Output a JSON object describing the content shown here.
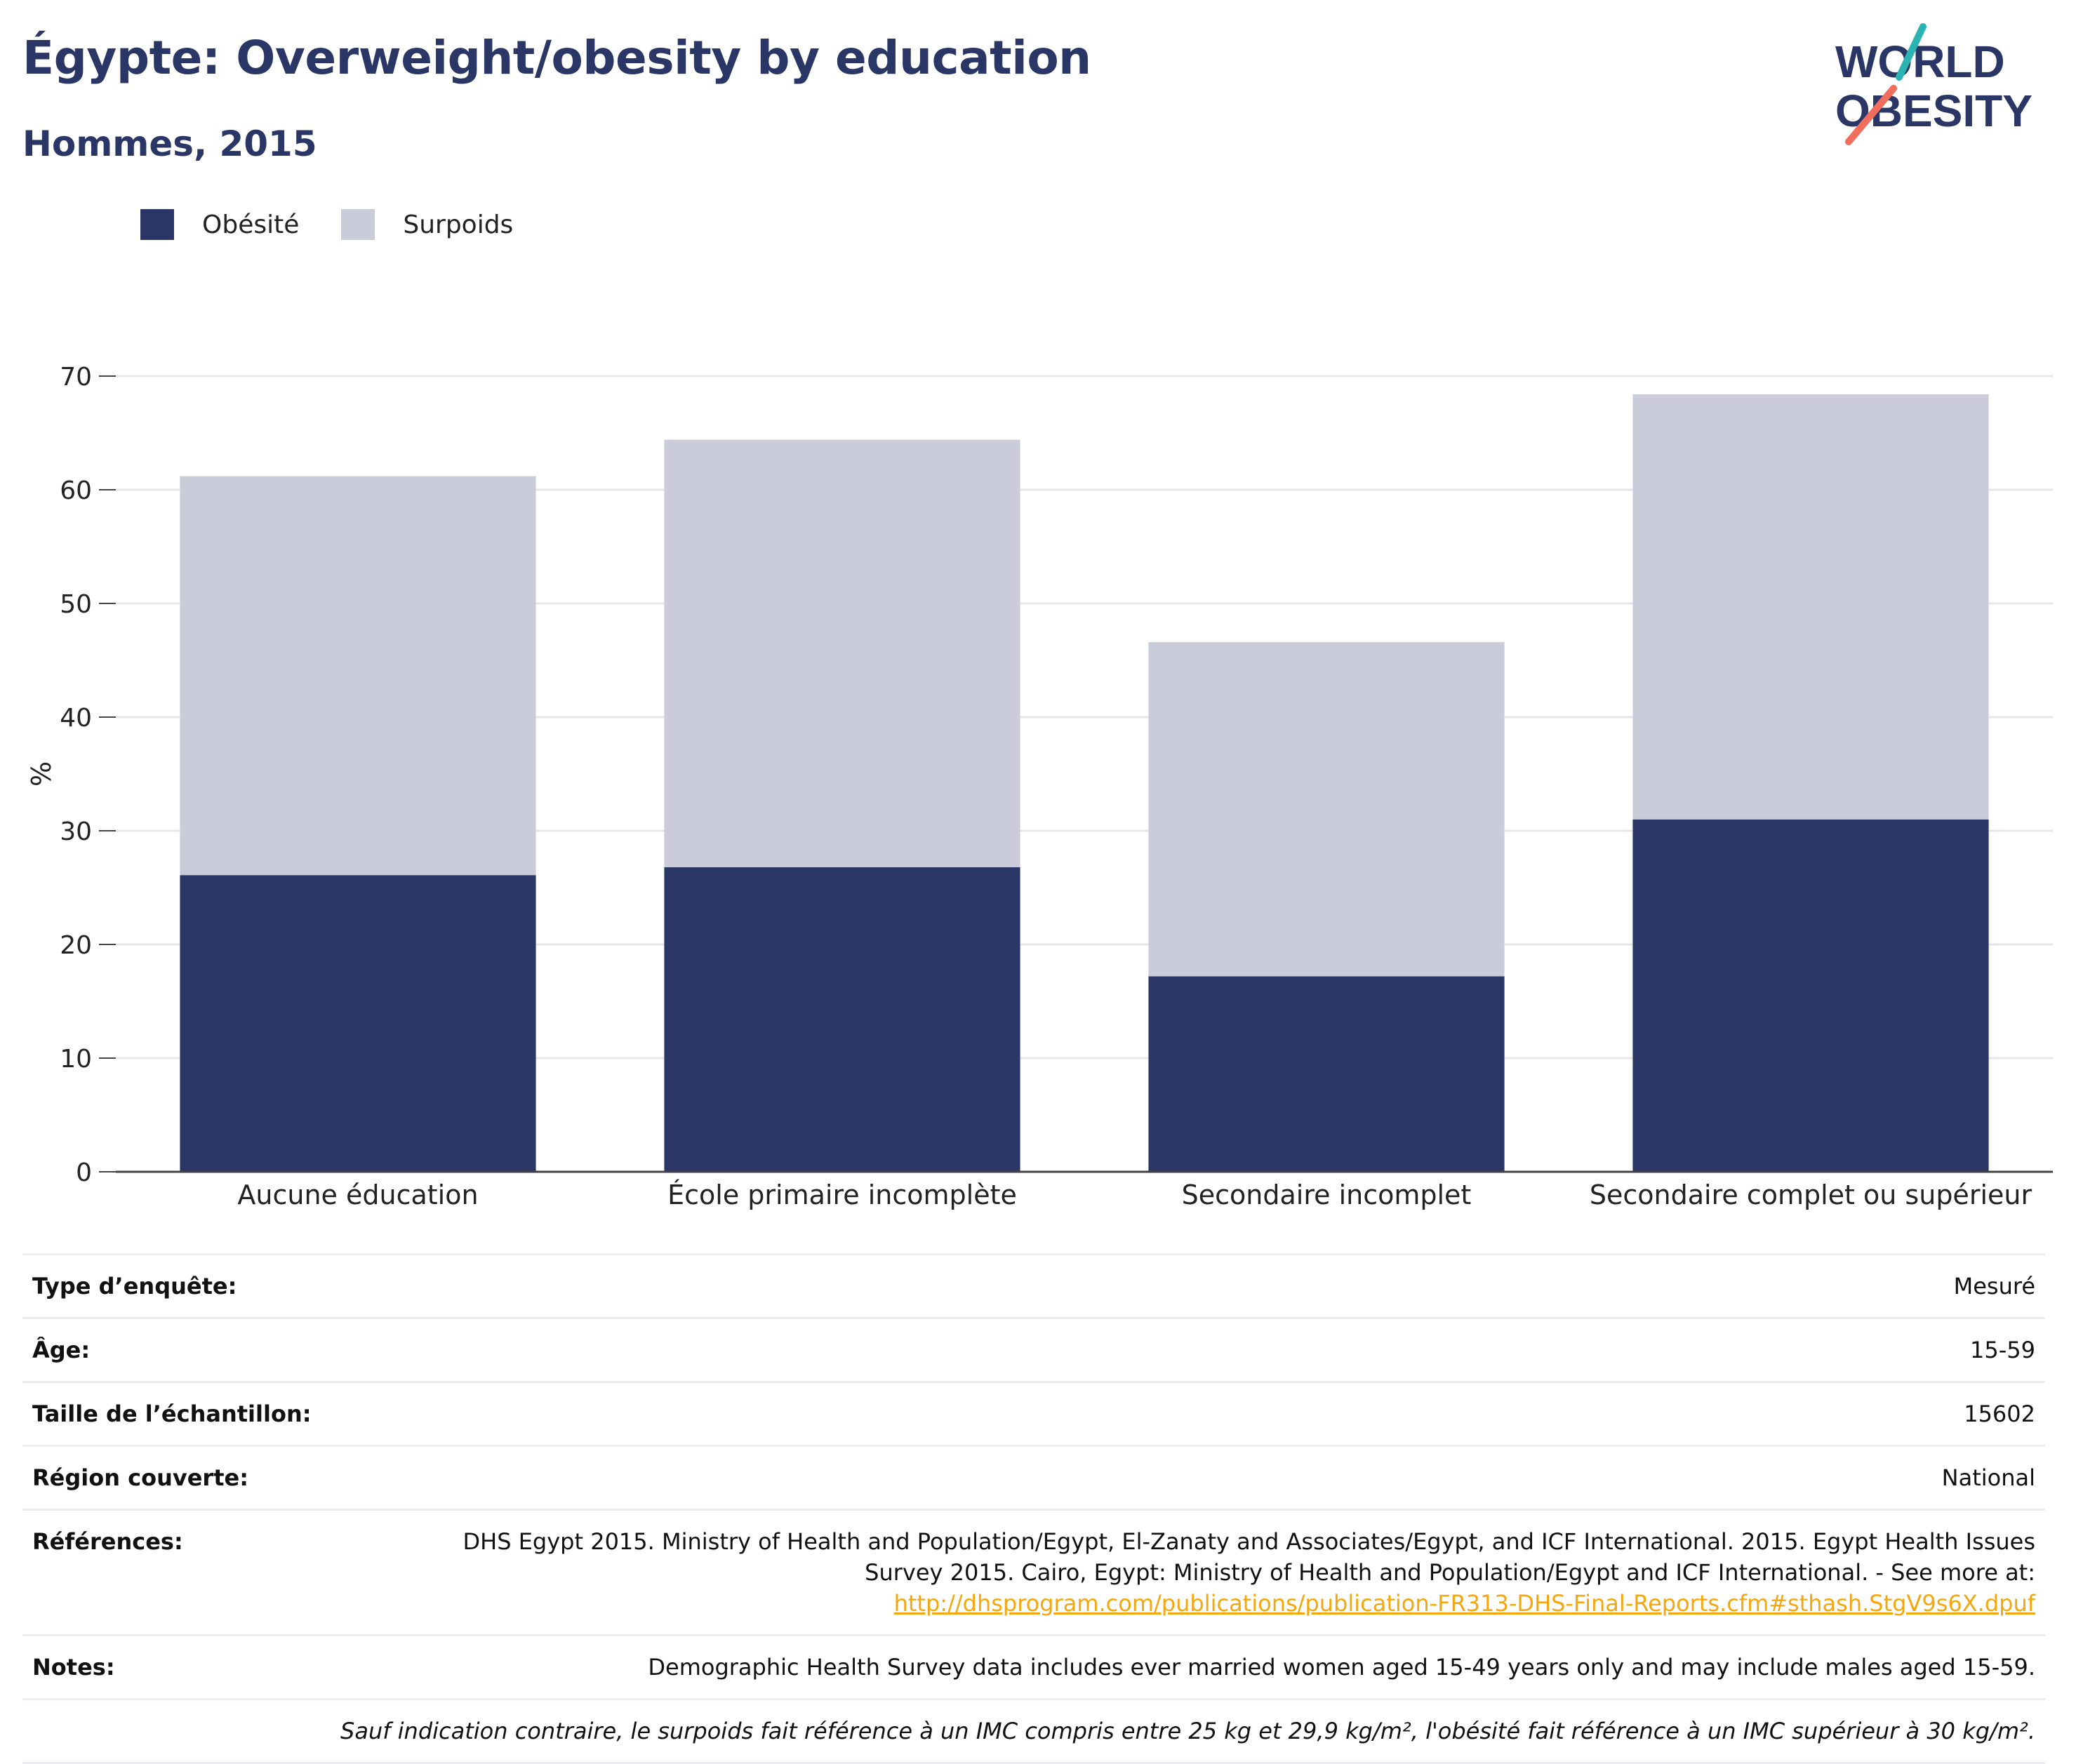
{
  "header": {
    "title": "Égypte: Overweight/obesity by education",
    "subtitle": "Hommes, 2015"
  },
  "logo": {
    "line1": "WORLD",
    "line2": "OBESITY"
  },
  "colors": {
    "obesity": "#2a3766",
    "overweight": "#cacdd9",
    "title": "#2a3766",
    "link": "#f4a70f",
    "logo_teal": "#2ab3b1",
    "logo_coral": "#f06e5b"
  },
  "chart_data": {
    "type": "bar",
    "stacked": true,
    "title": "Égypte: Overweight/obesity by education",
    "subtitle": "Hommes, 2015",
    "ylabel": "%",
    "xlabel": "",
    "ylim": [
      0,
      70
    ],
    "yticks": [
      "0",
      "10",
      "20",
      "30",
      "40",
      "50",
      "60",
      "70"
    ],
    "grid": true,
    "legend_position": "top-left",
    "categories": [
      "Aucune éducation",
      "École primaire incomplète",
      "Secondaire incomplet",
      "Secondaire complet ou supérieur"
    ],
    "series": [
      {
        "name": "Obésité",
        "values": [
          26.1,
          26.8,
          17.2,
          31.0
        ]
      },
      {
        "name": "Surpoids",
        "values": [
          35.1,
          37.6,
          29.4,
          37.4
        ]
      }
    ]
  },
  "info": {
    "rows": [
      {
        "label": "Type d’enquête:",
        "value": "Mesuré"
      },
      {
        "label": "Âge:",
        "value": "15-59"
      },
      {
        "label": "Taille de l’échantillon:",
        "value": "15602"
      },
      {
        "label": "Région couverte:",
        "value": "National"
      }
    ],
    "references_label": "Références:",
    "references_text": "DHS Egypt 2015. Ministry of Health and Population/Egypt, El-Zanaty and Associates/Egypt, and ICF International. 2015. Egypt Health Issues Survey 2015. Cairo, Egypt: Ministry of Health and Population/Egypt and ICF International. - See more at:",
    "references_link": "http://dhsprogram.com/publications/publication-FR313-DHS-Final-Reports.cfm#sthash.StgV9s6X.dpuf",
    "notes_label": "Notes:",
    "notes_text": "Demographic Health Survey data includes ever married women aged 15-49 years only and may include males aged 15-59.",
    "footnote": "Sauf indication contraire, le surpoids fait référence à un IMC compris entre 25 kg et 29,9 kg/m², l'obésité fait référence à un IMC supérieur à 30 kg/m²."
  }
}
